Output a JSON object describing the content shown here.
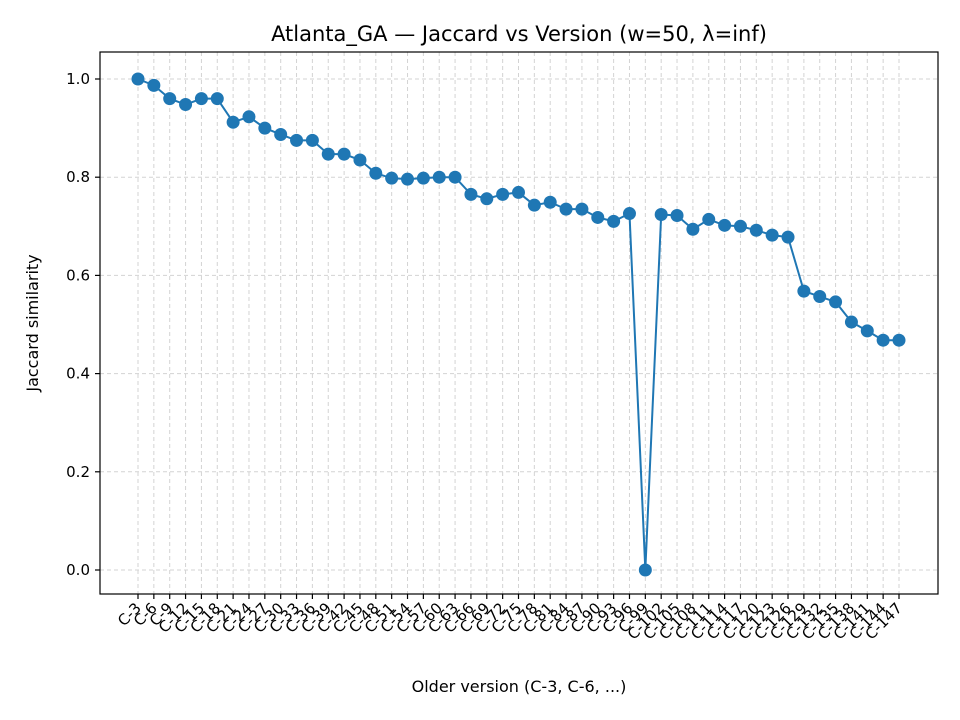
{
  "chart_data": {
    "type": "line",
    "title": "Atlanta_GA — Jaccard vs Version (w=50, λ=inf)",
    "xlabel": "Older version (C-3, C-6, ...)",
    "ylabel": "Jaccard similarity",
    "ylim": [
      -0.05,
      1.05
    ],
    "yticks": [
      0.0,
      0.2,
      0.4,
      0.6,
      0.8,
      1.0
    ],
    "ytick_labels": [
      "0.0",
      "0.2",
      "0.4",
      "0.6",
      "0.8",
      "1.0"
    ],
    "grid": true,
    "line_color": "#1f77b4",
    "categories": [
      "C-3",
      "C-6",
      "C-9",
      "C-12",
      "C-15",
      "C-18",
      "C-21",
      "C-24",
      "C-27",
      "C-30",
      "C-33",
      "C-36",
      "C-39",
      "C-42",
      "C-45",
      "C-48",
      "C-51",
      "C-54",
      "C-57",
      "C-60",
      "C-63",
      "C-66",
      "C-69",
      "C-72",
      "C-75",
      "C-78",
      "C-81",
      "C-84",
      "C-87",
      "C-90",
      "C-93",
      "C-96",
      "C-99",
      "C-102",
      "C-105",
      "C-108",
      "C-111",
      "C-114",
      "C-117",
      "C-120",
      "C-123",
      "C-126",
      "C-129",
      "C-132",
      "C-135",
      "C-138",
      "C-141",
      "C-144",
      "C-147"
    ],
    "values": [
      1.0,
      0.987,
      0.96,
      0.948,
      0.96,
      0.96,
      0.912,
      0.923,
      0.9,
      0.887,
      0.875,
      0.875,
      0.847,
      0.847,
      0.835,
      0.808,
      0.798,
      0.796,
      0.798,
      0.8,
      0.8,
      0.765,
      0.756,
      0.765,
      0.769,
      0.743,
      0.749,
      0.735,
      0.735,
      0.718,
      0.71,
      0.726,
      0.0,
      0.724,
      0.722,
      0.694,
      0.714,
      0.702,
      0.7,
      0.692,
      0.682,
      0.678,
      0.568,
      0.557,
      0.546,
      0.505,
      0.487,
      0.468,
      0.468
    ]
  }
}
